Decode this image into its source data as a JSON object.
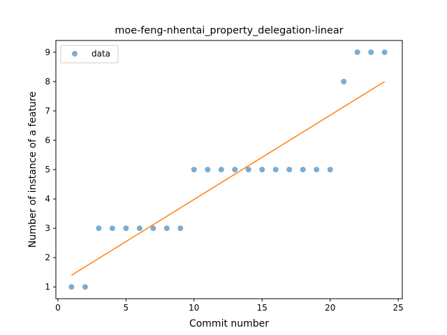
{
  "chart_data": {
    "type": "scatter",
    "title": "moe-feng-nhentai_property_delegation-linear",
    "xlabel": "Commit number",
    "ylabel": "Number of instance of a feature",
    "xlim": [
      -0.15,
      25.3
    ],
    "ylim": [
      0.6,
      9.4
    ],
    "xticks": [
      0,
      5,
      10,
      15,
      20,
      25
    ],
    "yticks": [
      1,
      2,
      3,
      4,
      5,
      6,
      7,
      8,
      9
    ],
    "grid": false,
    "legend_position": "upper-left",
    "series": [
      {
        "name": "data",
        "kind": "scatter",
        "color": "#1f77b4",
        "x": [
          1,
          2,
          3,
          4,
          5,
          6,
          7,
          8,
          9,
          10,
          11,
          12,
          13,
          14,
          15,
          16,
          17,
          18,
          19,
          20,
          21,
          22,
          23,
          24
        ],
        "y": [
          1,
          1,
          3,
          3,
          3,
          3,
          3,
          3,
          3,
          5,
          5,
          5,
          5,
          5,
          5,
          5,
          5,
          5,
          5,
          5,
          8,
          9,
          9,
          9
        ]
      },
      {
        "kind": "line",
        "color": "#ff7f0e",
        "x": [
          1,
          24
        ],
        "y": [
          1.4,
          8.0
        ]
      }
    ]
  }
}
